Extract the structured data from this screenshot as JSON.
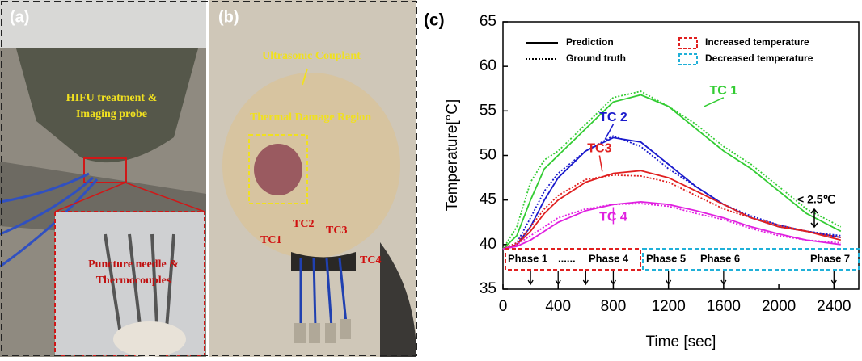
{
  "panel_a": {
    "label": "(a)",
    "probe_text": [
      "HIFU treatment &",
      "Imaging probe"
    ],
    "inset_text": [
      "Puncture needle &",
      "Thermocouples"
    ]
  },
  "panel_b": {
    "label": "(b)",
    "couplant": "Ultrasonic Couplant",
    "damage": "Thermal Damage Region",
    "tcs": [
      "TC1",
      "TC2",
      "TC3",
      "TC4"
    ]
  },
  "chart_data": {
    "type": "line",
    "panel_label": "(c)",
    "xlabel": "Time [sec]",
    "ylabel": "Temperature[°C]",
    "xlim": [
      0,
      2580
    ],
    "ylim": [
      35,
      65
    ],
    "xticks": [
      0,
      400,
      800,
      1200,
      1600,
      2000,
      2400
    ],
    "yticks": [
      35,
      40,
      45,
      50,
      55,
      60,
      65
    ],
    "line_styles": [
      {
        "name": "Prediction",
        "dash": "solid"
      },
      {
        "name": "Ground truth",
        "dash": "dotted"
      }
    ],
    "box_legend": [
      {
        "name": "Increased temperature",
        "color": "#e02020"
      },
      {
        "name": "Decreased temperature",
        "color": "#20b0d8"
      }
    ],
    "x": [
      0,
      100,
      200,
      300,
      400,
      600,
      800,
      1000,
      1200,
      1400,
      1600,
      1800,
      2000,
      2200,
      2450
    ],
    "series": [
      {
        "name": "TC 1",
        "color": "#33cc33",
        "prediction": [
          39.5,
          41,
          45,
          48.5,
          50,
          53,
          56,
          56.8,
          55.5,
          53,
          50.5,
          48.5,
          46,
          43.5,
          41.5
        ],
        "ground_truth": [
          39.5,
          42,
          47,
          49.5,
          50.5,
          53.5,
          56.5,
          57.2,
          55.5,
          53.5,
          51,
          49,
          46.5,
          44,
          42
        ]
      },
      {
        "name": "TC 2",
        "color": "#1a1acc",
        "prediction": [
          39.5,
          40,
          42,
          45,
          47.5,
          50.5,
          52,
          51.5,
          49,
          46.5,
          44.5,
          43,
          42,
          41.5,
          40.8
        ],
        "ground_truth": [
          39.5,
          40.2,
          43,
          46,
          48,
          50.5,
          52.2,
          51,
          48.5,
          46.5,
          44.5,
          43.2,
          42.2,
          41.5,
          41
        ]
      },
      {
        "name": "TC3",
        "color": "#e02020",
        "prediction": [
          39.5,
          40,
          41.5,
          43.5,
          45,
          47,
          48,
          48.3,
          47.5,
          46,
          44.5,
          43,
          42,
          41.5,
          40.5
        ],
        "ground_truth": [
          39.5,
          40.2,
          42,
          44,
          45.5,
          47.3,
          47.8,
          47.7,
          47,
          45.5,
          44,
          43,
          42.2,
          41.5,
          40.8
        ]
      },
      {
        "name": "TC 4",
        "color": "#e020e0",
        "prediction": [
          39.5,
          39.8,
          40.5,
          41.5,
          42.5,
          43.8,
          44.5,
          44.8,
          44.5,
          43.8,
          43,
          42,
          41.2,
          40.5,
          40
        ],
        "ground_truth": [
          39.5,
          40,
          41,
          42,
          43,
          44,
          44.5,
          44.6,
          44.3,
          43.5,
          42.8,
          41.8,
          41,
          40.5,
          40.2
        ]
      }
    ],
    "annotation": "< 2.5℃",
    "phases": [
      "Phase 1",
      "......",
      "Phase 4",
      "Phase 5",
      "Phase 6",
      "Phase 7"
    ],
    "phase_arrows_x": [
      200,
      400,
      600,
      800,
      1200,
      1600,
      2400
    ]
  }
}
